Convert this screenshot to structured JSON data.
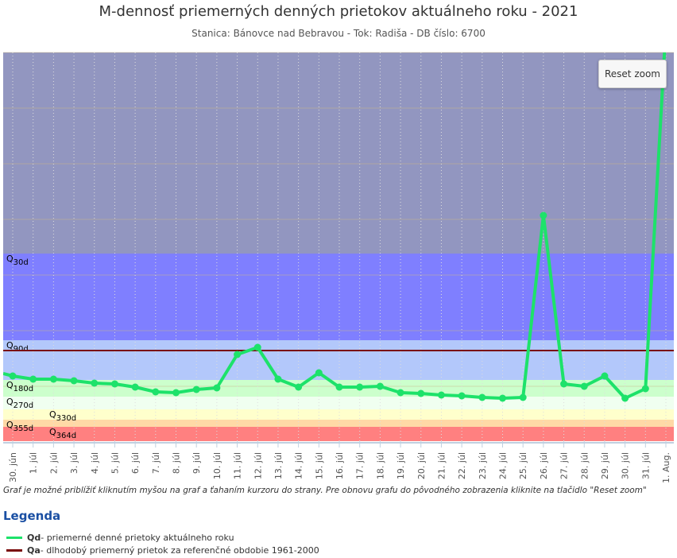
{
  "chart_data": {
    "type": "line",
    "title": "M-dennosť priemerných denných prietokov aktuálneho roku - 2021",
    "subtitle": "Stanica: Bánovce nad Bebravou - Tok: Radiša - DB číslo: 6700",
    "categories": [
      "30. jún",
      "1. júl",
      "2. júl",
      "3. júl",
      "4. júl",
      "5. júl",
      "6. júl",
      "7. júl",
      "8. júl",
      "9. júl",
      "10. júl",
      "11. júl",
      "12. júl",
      "13. júl",
      "14. júl",
      "15. júl",
      "16. júl",
      "17. júl",
      "18. júl",
      "19. júl",
      "20. júl",
      "21. júl",
      "22. júl",
      "23. júl",
      "24. júl",
      "25. júl",
      "26. júl",
      "27. júl",
      "28. júl",
      "29. júl",
      "30. júl",
      "31. júl",
      "1. Aug."
    ],
    "series": [
      {
        "name": "Qd",
        "values": [
          82,
          78,
          78,
          76,
          73,
          72,
          68,
          62,
          61,
          65,
          67,
          109,
          118,
          78,
          68,
          86,
          68,
          68,
          69,
          61,
          60,
          58,
          57,
          55,
          54,
          55,
          284,
          72,
          69,
          82,
          54,
          66,
          520
        ],
        "color": "#1de26a"
      }
    ],
    "ylim": [
      0,
      489
    ],
    "qa": {
      "name": "Qa",
      "value": 114,
      "color": "#7a0a0a"
    },
    "bands": [
      {
        "label": "Q",
        "sub": "30d",
        "from": 236,
        "to": 489,
        "color": "#9296c0",
        "labelVal": null
      },
      {
        "label": "Q",
        "sub": "30d",
        "from": 127,
        "to": 236,
        "color": "#7f7fff"
      },
      {
        "label": "Q",
        "sub": "90d",
        "from": 77,
        "to": 127,
        "color": "#b3c8fb"
      },
      {
        "label": "Q",
        "sub": "180d",
        "from": 56,
        "to": 77,
        "color": "#ccffcc"
      },
      {
        "label": "Q",
        "sub": "270d",
        "from": 40,
        "to": 56,
        "color": "#f0fff0"
      },
      {
        "label": "Q",
        "sub": "330d",
        "from": 27,
        "to": 40,
        "color": "#ffffcc"
      },
      {
        "label": "Q",
        "sub": "355d",
        "from": 18,
        "to": 27,
        "color": "#ffd9a6"
      },
      {
        "label": "Q",
        "sub": "364d",
        "from": 0,
        "to": 18,
        "color": "#ff8080"
      }
    ]
  },
  "reset_label": "Reset zoom",
  "note": "Graf je možné priblížiť kliknutím myšou na graf a ťahaním kurzoru do strany. Pre obnovu grafu do pôvodného zobrazenia kliknite na tlačidlo \"Reset zoom\"",
  "legend": {
    "title": "Legenda",
    "items": [
      {
        "name": "Qd",
        "desc": " - priemerné denné prietoky aktuálneho roku",
        "color": "#1de26a"
      },
      {
        "name": "Qa",
        "desc": " - dlhodobý priemerný prietok za referenčné obdobie 1961-2000",
        "color": "#7a0a0a"
      }
    ]
  }
}
